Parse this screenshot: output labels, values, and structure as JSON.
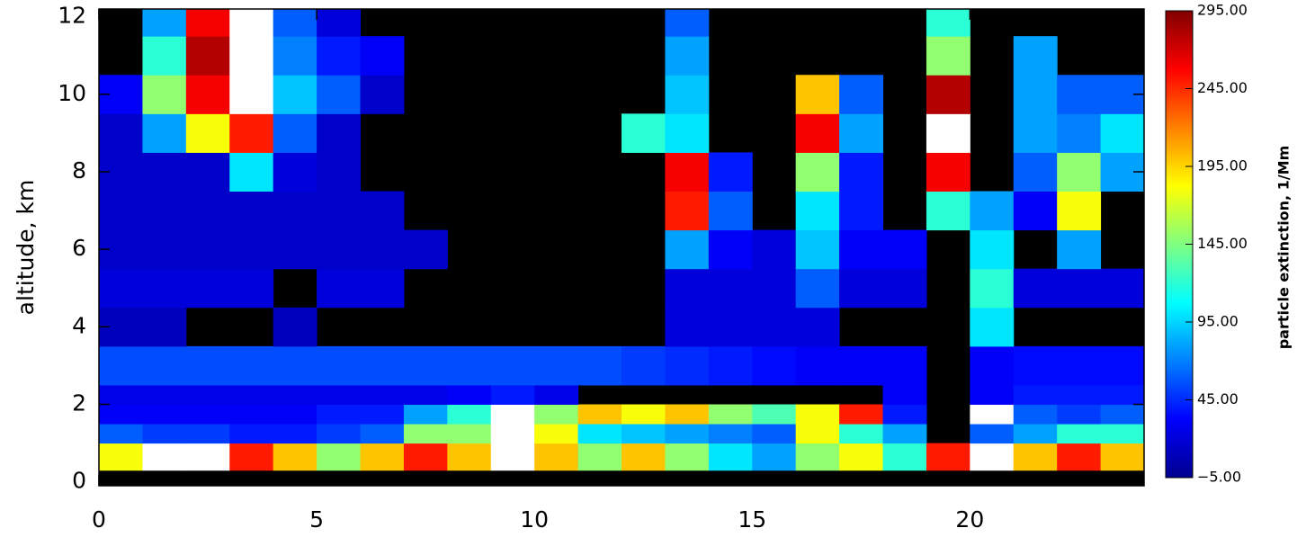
{
  "chart_data": {
    "type": "heatmap",
    "y_label": "altitude, km",
    "colorbar_label": "particle extinction, 1/Mm",
    "xbins": [
      0,
      1,
      2,
      3,
      4,
      5,
      6,
      7,
      8,
      9,
      10,
      11,
      12,
      13,
      14,
      15,
      16,
      17,
      18,
      19,
      20,
      21,
      22,
      23,
      24
    ],
    "ybins": [
      0.3,
      1,
      1.5,
      2,
      2.5,
      3.5,
      4.5,
      5.5,
      6.5,
      7.5,
      8.5,
      9.5,
      10.5,
      11.5,
      12.2
    ],
    "z": [
      [
        180,
        300,
        300,
        250,
        200,
        150,
        200,
        250,
        200,
        300,
        200,
        150,
        200,
        150,
        100,
        80,
        150,
        180,
        120,
        250,
        300,
        200,
        250,
        200
      ],
      [
        60,
        50,
        50,
        40,
        40,
        50,
        60,
        150,
        150,
        300,
        180,
        100,
        90,
        80,
        70,
        60,
        180,
        120,
        80,
        null,
        60,
        80,
        120,
        120
      ],
      [
        30,
        30,
        30,
        30,
        30,
        40,
        40,
        80,
        120,
        300,
        150,
        200,
        180,
        200,
        150,
        130,
        180,
        250,
        40,
        null,
        300,
        60,
        50,
        60
      ],
      [
        25,
        25,
        25,
        25,
        25,
        25,
        25,
        25,
        30,
        40,
        25,
        null,
        null,
        null,
        null,
        null,
        null,
        null,
        30,
        null,
        30,
        40,
        40,
        40
      ],
      [
        55,
        55,
        55,
        55,
        55,
        55,
        55,
        55,
        55,
        55,
        55,
        55,
        50,
        45,
        40,
        35,
        30,
        30,
        30,
        null,
        30,
        35,
        35,
        35
      ],
      [
        10,
        10,
        null,
        null,
        10,
        null,
        null,
        null,
        null,
        null,
        null,
        null,
        null,
        20,
        20,
        20,
        20,
        null,
        null,
        null,
        100,
        null,
        null,
        null
      ],
      [
        20,
        20,
        20,
        20,
        null,
        20,
        20,
        null,
        null,
        null,
        null,
        null,
        null,
        20,
        20,
        20,
        60,
        20,
        20,
        null,
        120,
        20,
        20,
        20
      ],
      [
        15,
        15,
        15,
        15,
        15,
        15,
        15,
        15,
        null,
        null,
        null,
        null,
        null,
        80,
        30,
        20,
        90,
        30,
        30,
        null,
        100,
        null,
        80,
        null
      ],
      [
        15,
        15,
        15,
        15,
        15,
        15,
        15,
        null,
        null,
        null,
        null,
        null,
        null,
        250,
        60,
        null,
        100,
        40,
        null,
        120,
        80,
        30,
        180,
        null
      ],
      [
        15,
        15,
        15,
        100,
        20,
        15,
        null,
        null,
        null,
        null,
        null,
        null,
        null,
        260,
        40,
        null,
        150,
        40,
        null,
        260,
        null,
        60,
        150,
        80
      ],
      [
        15,
        80,
        180,
        250,
        60,
        15,
        null,
        null,
        null,
        null,
        null,
        null,
        120,
        100,
        null,
        null,
        260,
        80,
        null,
        300,
        null,
        80,
        70,
        100
      ],
      [
        30,
        150,
        260,
        300,
        90,
        60,
        15,
        null,
        null,
        null,
        null,
        null,
        null,
        90,
        null,
        null,
        200,
        60,
        null,
        280,
        null,
        80,
        60,
        60
      ],
      [
        null,
        120,
        280,
        300,
        70,
        40,
        30,
        null,
        null,
        null,
        null,
        null,
        null,
        80,
        null,
        null,
        null,
        null,
        null,
        150,
        null,
        80,
        null,
        null
      ],
      [
        null,
        80,
        260,
        300,
        60,
        20,
        null,
        null,
        null,
        null,
        null,
        null,
        null,
        60,
        null,
        null,
        null,
        null,
        null,
        120,
        null,
        null,
        null,
        null
      ]
    ],
    "xlim": [
      0,
      24
    ],
    "ylim": [
      -0.1,
      12.2
    ],
    "xticks": [
      0,
      5,
      10,
      15,
      20
    ],
    "yticks": [
      0,
      2,
      4,
      6,
      8,
      10,
      12
    ],
    "zlim": [
      -5,
      295
    ],
    "zticks": [
      {
        "value": -5,
        "label": "−5.00"
      },
      {
        "value": 45,
        "label": "45.00"
      },
      {
        "value": 95,
        "label": "95.00"
      },
      {
        "value": 145,
        "label": "145.00"
      },
      {
        "value": 195,
        "label": "195.00"
      },
      {
        "value": 245,
        "label": "245.00"
      },
      {
        "value": 295,
        "label": "295.00"
      }
    ],
    "colorscale": [
      "#00008f",
      "#0000ff",
      "#0080ff",
      "#00ffff",
      "#80ff80",
      "#ffff00",
      "#ff8000",
      "#ff0000",
      "#800000"
    ],
    "above_color": "#ffffff",
    "missing_color": "#000000"
  }
}
